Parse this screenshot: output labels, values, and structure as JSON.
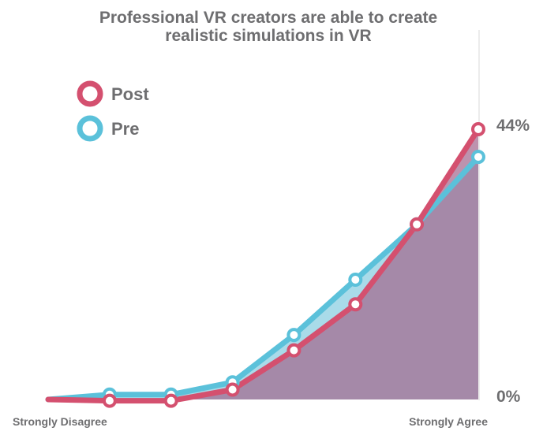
{
  "chart_data": {
    "type": "area",
    "title_lines": [
      "Professional VR creators are able to create",
      "realistic simulations in VR"
    ],
    "x_labels": {
      "left": "Strongly Disagree",
      "right": "Strongly Agree"
    },
    "y_labels": {
      "top": "44%",
      "bottom": "0%"
    },
    "ylim": [
      0,
      44
    ],
    "x": [
      0,
      1,
      2,
      3,
      4,
      5,
      6,
      7
    ],
    "series": [
      {
        "name": "Pre",
        "color": "#5bc1da",
        "values": [
          0.0,
          0.8,
          0.8,
          2.8,
          10.5,
          19.5,
          28.5,
          39.5
        ]
      },
      {
        "name": "Post",
        "color": "#d4506f",
        "values": [
          0.0,
          -0.2,
          -0.2,
          1.6,
          8.0,
          15.5,
          28.5,
          44.0
        ]
      }
    ],
    "legend": {
      "placement": "top-left",
      "order": [
        "Post",
        "Pre"
      ]
    },
    "grid": false
  }
}
